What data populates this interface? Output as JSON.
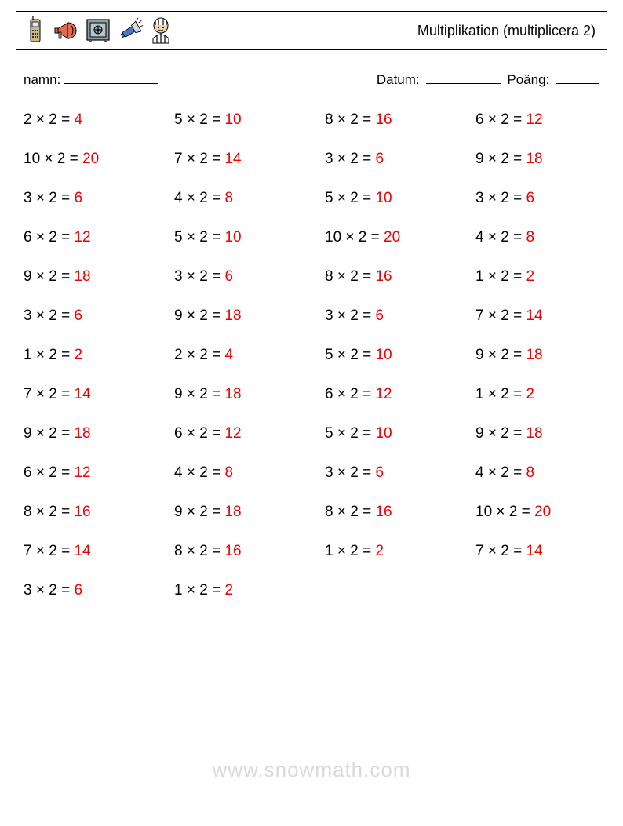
{
  "header": {
    "title": "Multiplikation (multiplicera 2)"
  },
  "meta": {
    "name_label": "namn:",
    "date_label": "Datum:",
    "score_label": "Poäng:"
  },
  "colors": {
    "answer": "#ee0000",
    "text": "#000000",
    "border": "#000000",
    "background": "#ffffff",
    "watermark": "rgba(120,120,120,0.28)"
  },
  "layout": {
    "columns": 4,
    "problem_fontsize": 19,
    "title_fontsize": 18,
    "meta_fontsize": 17
  },
  "problems": [
    {
      "a": 2,
      "b": 2,
      "ans": 4
    },
    {
      "a": 5,
      "b": 2,
      "ans": 10
    },
    {
      "a": 8,
      "b": 2,
      "ans": 16
    },
    {
      "a": 6,
      "b": 2,
      "ans": 12
    },
    {
      "a": 10,
      "b": 2,
      "ans": 20
    },
    {
      "a": 7,
      "b": 2,
      "ans": 14
    },
    {
      "a": 3,
      "b": 2,
      "ans": 6
    },
    {
      "a": 9,
      "b": 2,
      "ans": 18
    },
    {
      "a": 3,
      "b": 2,
      "ans": 6
    },
    {
      "a": 4,
      "b": 2,
      "ans": 8
    },
    {
      "a": 5,
      "b": 2,
      "ans": 10
    },
    {
      "a": 3,
      "b": 2,
      "ans": 6
    },
    {
      "a": 6,
      "b": 2,
      "ans": 12
    },
    {
      "a": 5,
      "b": 2,
      "ans": 10
    },
    {
      "a": 10,
      "b": 2,
      "ans": 20
    },
    {
      "a": 4,
      "b": 2,
      "ans": 8
    },
    {
      "a": 9,
      "b": 2,
      "ans": 18
    },
    {
      "a": 3,
      "b": 2,
      "ans": 6
    },
    {
      "a": 8,
      "b": 2,
      "ans": 16
    },
    {
      "a": 1,
      "b": 2,
      "ans": 2
    },
    {
      "a": 3,
      "b": 2,
      "ans": 6
    },
    {
      "a": 9,
      "b": 2,
      "ans": 18
    },
    {
      "a": 3,
      "b": 2,
      "ans": 6
    },
    {
      "a": 7,
      "b": 2,
      "ans": 14
    },
    {
      "a": 1,
      "b": 2,
      "ans": 2
    },
    {
      "a": 2,
      "b": 2,
      "ans": 4
    },
    {
      "a": 5,
      "b": 2,
      "ans": 10
    },
    {
      "a": 9,
      "b": 2,
      "ans": 18
    },
    {
      "a": 7,
      "b": 2,
      "ans": 14
    },
    {
      "a": 9,
      "b": 2,
      "ans": 18
    },
    {
      "a": 6,
      "b": 2,
      "ans": 12
    },
    {
      "a": 1,
      "b": 2,
      "ans": 2
    },
    {
      "a": 9,
      "b": 2,
      "ans": 18
    },
    {
      "a": 6,
      "b": 2,
      "ans": 12
    },
    {
      "a": 5,
      "b": 2,
      "ans": 10
    },
    {
      "a": 9,
      "b": 2,
      "ans": 18
    },
    {
      "a": 6,
      "b": 2,
      "ans": 12
    },
    {
      "a": 4,
      "b": 2,
      "ans": 8
    },
    {
      "a": 3,
      "b": 2,
      "ans": 6
    },
    {
      "a": 4,
      "b": 2,
      "ans": 8
    },
    {
      "a": 8,
      "b": 2,
      "ans": 16
    },
    {
      "a": 9,
      "b": 2,
      "ans": 18
    },
    {
      "a": 8,
      "b": 2,
      "ans": 16
    },
    {
      "a": 10,
      "b": 2,
      "ans": 20
    },
    {
      "a": 7,
      "b": 2,
      "ans": 14
    },
    {
      "a": 8,
      "b": 2,
      "ans": 16
    },
    {
      "a": 1,
      "b": 2,
      "ans": 2
    },
    {
      "a": 7,
      "b": 2,
      "ans": 14
    },
    {
      "a": 3,
      "b": 2,
      "ans": 6
    },
    {
      "a": 1,
      "b": 2,
      "ans": 2
    }
  ],
  "watermark": "www.snowmath.com"
}
